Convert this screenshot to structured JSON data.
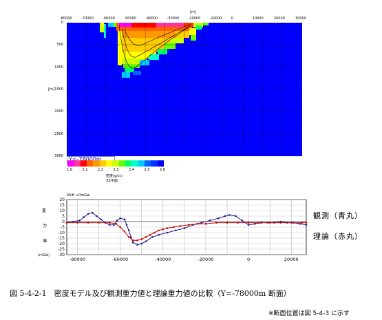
{
  "top": {
    "x_unit": "[m]",
    "x_ticks": [
      "-80000",
      "-70000",
      "-60000",
      "-50000",
      "-40000",
      "-30000",
      "-20000",
      "-10000",
      "0",
      "10000",
      "20000",
      "30000"
    ],
    "y_unit": "[m]",
    "y_ticks": [
      "0",
      "500",
      "1000",
      "1500",
      "2000",
      "2500",
      "3000"
    ],
    "section_label": "Y=-78000m",
    "colorbar": {
      "ticks": [
        "1.9",
        "2.1",
        "2.2",
        "2.3",
        "2.4",
        "2.5",
        "2.6"
      ],
      "title": "密度(g/cc)",
      "subtitle": "XZ平面",
      "colors": [
        "#ff00ff",
        "#ff3399",
        "#ff0000",
        "#ff6600",
        "#ff9900",
        "#ffcc00",
        "#ffff00",
        "#ccff00",
        "#66ff00",
        "#00ff66",
        "#00ffcc",
        "#00ccff",
        "#0066ff",
        "#0033ff",
        "#0000ff"
      ]
    },
    "background": "#0000ff"
  },
  "chart_data": {
    "type": "line",
    "title": "Shift +0mGal",
    "ylabel": [
      "重",
      "力",
      "値",
      "(mGal)"
    ],
    "xlim": [
      -85000,
      27000
    ],
    "ylim": [
      -30,
      20
    ],
    "x_ticks": [
      -80000,
      -60000,
      -40000,
      -20000,
      0,
      20000
    ],
    "x_tick_labels": [
      "-80000",
      "-60000",
      "-40000",
      "-20000",
      "0",
      "20000"
    ],
    "y_ticks": [
      20,
      15,
      10,
      5,
      0,
      -5,
      -10,
      -15,
      -20,
      -25,
      -30
    ],
    "y_tick_labels": [
      "20",
      "15",
      "10",
      "5",
      "0",
      "-5",
      "-10",
      "-15",
      "-20",
      "-25",
      "-30"
    ],
    "series": [
      {
        "name": "観測（青丸）",
        "color": "#1a1a8c",
        "x": [
          -85000,
          -82000,
          -79000,
          -77000,
          -75000,
          -73000,
          -71000,
          -69000,
          -67000,
          -65000,
          -63000,
          -61500,
          -60000,
          -58000,
          -57000,
          -56000,
          -55000,
          -54000,
          -52000,
          -50000,
          -48000,
          -45000,
          -42000,
          -38000,
          -34000,
          -30000,
          -26000,
          -22000,
          -18000,
          -14000,
          -11000,
          -9000,
          -6000,
          -3000,
          0,
          3000,
          6000,
          9000,
          12000,
          15000,
          18000,
          21000,
          24000,
          27000
        ],
        "values": [
          -1,
          0,
          1,
          4,
          7,
          8,
          5,
          2,
          -1,
          -3,
          -3,
          1,
          3,
          2,
          -3,
          -8,
          -14,
          -19,
          -21,
          -20,
          -18,
          -14,
          -12,
          -10,
          -8,
          -6,
          -3,
          -1,
          1,
          3,
          5,
          6,
          5,
          1,
          -3,
          -2,
          -1,
          -1,
          -1,
          0,
          -1,
          -1,
          -2,
          -3
        ]
      },
      {
        "name": "理論（赤丸）",
        "color": "#cc0000",
        "x": [
          -85000,
          -80000,
          -75000,
          -70000,
          -65000,
          -62000,
          -60000,
          -58000,
          -56000,
          -54000,
          -52000,
          -50000,
          -48000,
          -46000,
          -44000,
          -42000,
          -40000,
          -38000,
          -35000,
          -32000,
          -28000,
          -24000,
          -20000,
          -15000,
          -10000,
          -5000,
          0,
          5000,
          10000,
          15000,
          20000,
          25000,
          27000
        ],
        "values": [
          -1,
          -1,
          -1,
          -1,
          -1,
          -2,
          -5,
          -9,
          -14,
          -17,
          -17,
          -16,
          -14,
          -12,
          -10,
          -8,
          -7,
          -6,
          -5,
          -4,
          -3,
          -2,
          -2,
          -1,
          -1,
          -1,
          -1,
          -1,
          -1,
          -1,
          -1,
          -1,
          -1
        ]
      }
    ]
  },
  "legend": {
    "observed": "観測（青丸）",
    "theoretical": "理論（赤丸）"
  },
  "caption": "図 5-4-2-1　密度モデル及び観測重力値と理論重力値の比較（Y=-78000m 断面）",
  "note": "※断面位置は図 5-4-3 に示す"
}
